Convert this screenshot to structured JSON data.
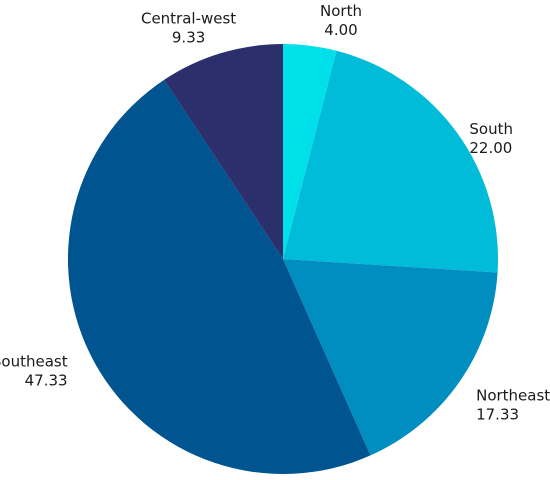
{
  "chart_data": {
    "type": "pie",
    "title": "",
    "categories": [
      "North",
      "South",
      "Northeast",
      "Southeast",
      "Central-west"
    ],
    "values": [
      4.0,
      22.0,
      17.33,
      47.33,
      9.33
    ],
    "value_labels": [
      "4.00",
      "22.00",
      "17.33",
      "47.33",
      "9.33"
    ],
    "colors": [
      "#00E0EA",
      "#00BCD9",
      "#008EC0",
      "#005490",
      "#2B306C"
    ],
    "start_angle_deg": 0,
    "direction": "clockwise",
    "legend": "none",
    "labels": "outside"
  }
}
